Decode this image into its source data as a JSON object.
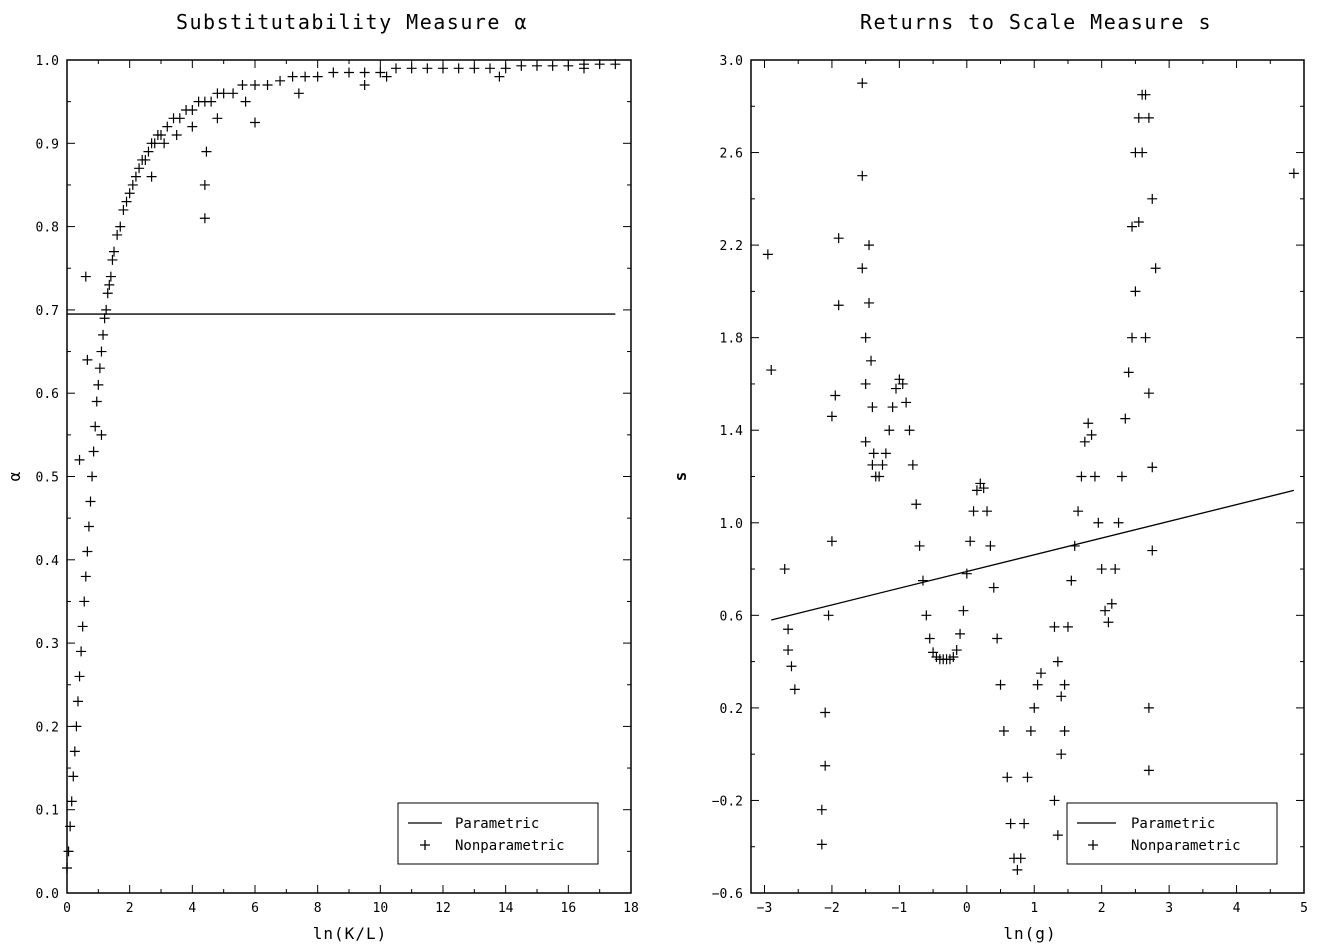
{
  "chart_data": [
    {
      "type": "scatter",
      "title": "Substitutability Measure α",
      "xlabel": "ln(K/L)",
      "ylabel": "α",
      "xlim": [
        0,
        18
      ],
      "ylim": [
        0.0,
        1.0
      ],
      "x_ticks": [
        "0",
        "2",
        "4",
        "6",
        "8",
        "10",
        "12",
        "14",
        "16",
        "18"
      ],
      "y_ticks": [
        "0.0",
        "0.1",
        "0.2",
        "0.3",
        "0.4",
        "0.5",
        "0.6",
        "0.7",
        "0.8",
        "0.9",
        "1.0"
      ],
      "legend": {
        "position": "bottom-right",
        "line_label": "Parametric",
        "plus_label": "Nonparametric"
      },
      "series": [
        {
          "name": "Parametric",
          "kind": "line",
          "x": [
            0,
            17.5
          ],
          "y": [
            0.695,
            0.695
          ]
        },
        {
          "name": "Nonparametric",
          "kind": "points",
          "x": [
            0.0,
            0.05,
            0.1,
            0.15,
            0.2,
            0.25,
            0.3,
            0.35,
            0.4,
            0.45,
            0.5,
            0.55,
            0.6,
            0.65,
            0.7,
            0.75,
            0.8,
            0.85,
            0.9,
            0.95,
            1.0,
            1.05,
            1.1,
            1.15,
            1.2,
            1.25,
            1.3,
            1.35,
            1.4,
            1.45,
            1.5,
            1.6,
            1.7,
            1.8,
            1.9,
            2.0,
            2.1,
            2.2,
            2.3,
            2.4,
            2.5,
            2.6,
            2.7,
            2.8,
            2.9,
            3.0,
            3.2,
            3.4,
            3.6,
            3.8,
            4.0,
            4.2,
            4.4,
            4.6,
            4.8,
            5.0,
            5.3,
            5.6,
            6.0,
            6.4,
            6.8,
            7.2,
            7.6,
            8.0,
            8.5,
            9.0,
            9.5,
            10.0,
            10.5,
            11.0,
            11.5,
            12.0,
            12.5,
            13.0,
            13.5,
            14.0,
            14.5,
            15.0,
            15.5,
            16.0,
            16.5,
            17.0,
            17.5,
            0.4,
            0.6,
            0.65,
            1.1,
            4.4,
            4.4,
            4.45,
            6.0,
            10.2,
            3.1,
            3.5,
            4.0,
            4.8,
            2.7,
            5.7,
            9.5,
            13.8,
            16.5,
            7.4
          ],
          "y": [
            0.03,
            0.05,
            0.08,
            0.11,
            0.14,
            0.17,
            0.2,
            0.23,
            0.26,
            0.29,
            0.32,
            0.35,
            0.38,
            0.41,
            0.44,
            0.47,
            0.5,
            0.53,
            0.56,
            0.59,
            0.61,
            0.63,
            0.65,
            0.67,
            0.69,
            0.7,
            0.72,
            0.73,
            0.74,
            0.76,
            0.77,
            0.79,
            0.8,
            0.82,
            0.83,
            0.84,
            0.85,
            0.86,
            0.87,
            0.88,
            0.88,
            0.89,
            0.9,
            0.9,
            0.91,
            0.91,
            0.92,
            0.93,
            0.93,
            0.94,
            0.94,
            0.95,
            0.95,
            0.95,
            0.96,
            0.96,
            0.96,
            0.97,
            0.97,
            0.97,
            0.975,
            0.98,
            0.98,
            0.98,
            0.985,
            0.985,
            0.985,
            0.985,
            0.99,
            0.99,
            0.99,
            0.99,
            0.99,
            0.99,
            0.99,
            0.99,
            0.993,
            0.993,
            0.993,
            0.993,
            0.995,
            0.995,
            0.995,
            0.52,
            0.74,
            0.64,
            0.55,
            0.81,
            0.85,
            0.89,
            0.925,
            0.98,
            0.9,
            0.91,
            0.92,
            0.93,
            0.86,
            0.95,
            0.97,
            0.98,
            0.99,
            0.96
          ]
        }
      ]
    },
    {
      "type": "scatter",
      "title": "Returns to Scale Measure s",
      "xlabel": "ln(g)",
      "ylabel": "s",
      "xlim": [
        -3.2,
        5
      ],
      "ylim": [
        -0.6,
        3.0
      ],
      "x_ticks": [
        "−3",
        "−2",
        "−1",
        "0",
        "1",
        "2",
        "3",
        "4",
        "5"
      ],
      "y_ticks": [
        "−0.6",
        "−0.2",
        "0.2",
        "0.6",
        "1.0",
        "1.4",
        "1.8",
        "2.2",
        "2.6",
        "3.0"
      ],
      "legend": {
        "position": "bottom-right",
        "line_label": "Parametric",
        "plus_label": "Nonparametric"
      },
      "series": [
        {
          "name": "Parametric",
          "kind": "line",
          "x": [
            -2.9,
            4.85
          ],
          "y": [
            0.58,
            1.14
          ]
        },
        {
          "name": "Nonparametric",
          "kind": "points",
          "x": [
            -1.4,
            -1.35,
            -1.3,
            -1.25,
            -1.2,
            -1.15,
            -1.1,
            -1.05,
            -1.0,
            -0.95,
            -0.9,
            -0.85,
            -0.8,
            -0.75,
            -0.7,
            -0.65,
            -0.6,
            -0.55,
            -0.5,
            -0.45,
            -0.4,
            -0.35,
            -0.3,
            -0.25,
            -0.2,
            -0.15,
            -0.1,
            -0.05,
            0.0,
            0.05,
            0.1,
            0.15,
            0.2,
            0.25,
            0.3,
            0.35,
            0.4,
            0.45,
            0.5,
            0.55,
            0.6,
            0.65,
            0.7,
            0.75,
            0.8,
            0.85,
            0.9,
            0.95,
            1.0,
            1.05,
            1.1,
            -2.95,
            -2.9,
            -2.7,
            -2.65,
            -2.65,
            -2.6,
            -2.55,
            -2.15,
            -2.15,
            -2.1,
            -2.1,
            -2.05,
            -2.0,
            -2.0,
            -1.95,
            -1.9,
            -1.9,
            -1.55,
            -1.55,
            -1.55,
            -1.5,
            -1.5,
            -1.5,
            -1.45,
            -1.45,
            -1.42,
            -1.4,
            -1.38,
            1.3,
            1.35,
            1.4,
            1.45,
            1.5,
            1.55,
            1.6,
            1.65,
            1.7,
            1.75,
            1.8,
            1.85,
            1.9,
            1.95,
            2.0,
            2.05,
            2.1,
            2.15,
            2.2,
            2.25,
            2.3,
            2.35,
            2.4,
            2.45,
            2.5,
            2.55,
            2.6,
            2.65,
            2.7,
            2.75,
            2.8,
            4.85,
            1.3,
            1.35,
            1.4,
            1.45,
            2.45,
            2.5,
            2.55,
            2.6,
            2.65,
            2.7,
            2.75,
            2.75,
            2.7,
            2.7
          ],
          "y": [
            1.25,
            1.2,
            1.2,
            1.25,
            1.3,
            1.4,
            1.5,
            1.58,
            1.62,
            1.6,
            1.52,
            1.4,
            1.25,
            1.08,
            0.9,
            0.75,
            0.6,
            0.5,
            0.44,
            0.42,
            0.41,
            0.41,
            0.41,
            0.41,
            0.42,
            0.45,
            0.52,
            0.62,
            0.78,
            0.92,
            1.05,
            1.14,
            1.17,
            1.15,
            1.05,
            0.9,
            0.72,
            0.5,
            0.3,
            0.1,
            -0.1,
            -0.3,
            -0.45,
            -0.5,
            -0.45,
            -0.3,
            -0.1,
            0.1,
            0.2,
            0.3,
            0.35,
            2.16,
            1.66,
            0.8,
            0.54,
            0.45,
            0.38,
            0.28,
            -0.39,
            -0.24,
            -0.05,
            0.18,
            0.6,
            0.92,
            1.46,
            1.55,
            1.94,
            2.23,
            2.9,
            2.5,
            2.1,
            1.8,
            1.6,
            1.35,
            2.2,
            1.95,
            1.7,
            1.5,
            1.3,
            -0.2,
            -0.35,
            0.0,
            0.3,
            0.55,
            0.75,
            0.9,
            1.05,
            1.2,
            1.35,
            1.43,
            1.38,
            1.2,
            1.0,
            0.8,
            0.62,
            0.57,
            0.65,
            0.8,
            1.0,
            1.2,
            1.45,
            1.65,
            1.8,
            2.0,
            2.3,
            2.6,
            2.85,
            2.75,
            2.4,
            2.1,
            2.51,
            0.55,
            0.4,
            0.25,
            0.1,
            2.28,
            2.6,
            2.75,
            2.85,
            1.8,
            1.56,
            1.24,
            0.88,
            -0.07,
            0.2
          ],
          "y_note": ""
        }
      ]
    }
  ]
}
